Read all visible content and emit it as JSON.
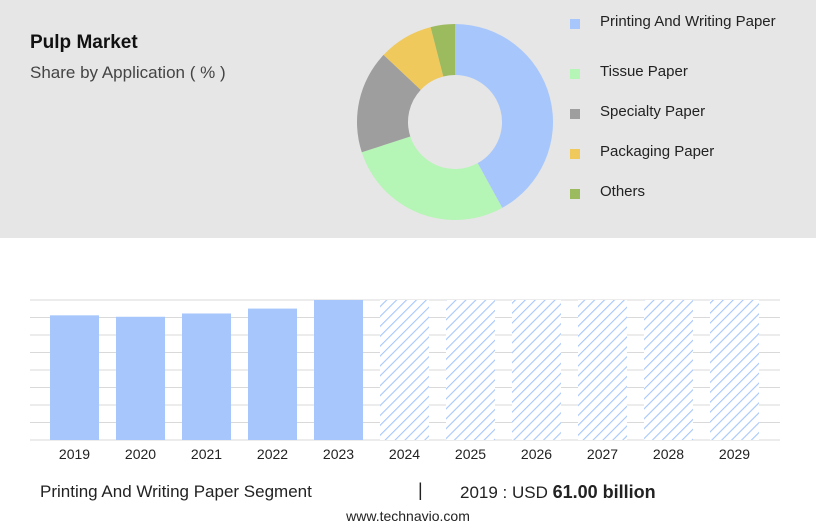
{
  "header": {
    "title": "Pulp Market",
    "subtitle": "Share by Application ( % )"
  },
  "chart_data": [
    {
      "type": "pie",
      "variant": "donut",
      "title": "Pulp Market",
      "subtitle": "Share by Application ( % )",
      "slices": [
        {
          "label": "Printing And Writing Paper",
          "value": 42,
          "color": "#a7c7fc"
        },
        {
          "label": "Tissue Paper",
          "value": 28,
          "color": "#b5f5b5"
        },
        {
          "label": "Specialty Paper",
          "value": 17,
          "color": "#9e9e9e"
        },
        {
          "label": "Packaging Paper",
          "value": 9,
          "color": "#f0c95c"
        },
        {
          "label": "Others",
          "value": 4,
          "color": "#9cba5e"
        }
      ],
      "legend_position": "right"
    },
    {
      "type": "bar",
      "categories": [
        "2019",
        "2020",
        "2021",
        "2022",
        "2023",
        "2024",
        "2025",
        "2026",
        "2027",
        "2028",
        "2029"
      ],
      "values": [
        61.0,
        60.3,
        61.9,
        64.3,
        68.5,
        68.5,
        68.5,
        68.5,
        68.5,
        68.5,
        68.5
      ],
      "forecast_from": "2024",
      "bar_color": "#a7c7fc",
      "ylim": [
        0,
        68.5
      ],
      "grid": true
    }
  ],
  "footer": {
    "segment": "Printing And Writing Paper Segment",
    "separator": "|",
    "value_prefix": "2019 : USD",
    "value_bold": "61.00 billion",
    "site": "www.technavio.com"
  }
}
